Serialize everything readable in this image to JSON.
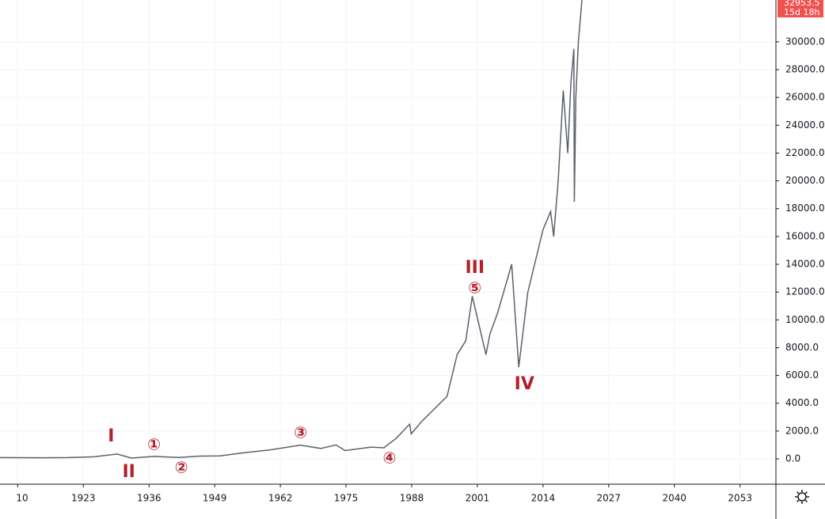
{
  "chart_data": {
    "type": "line",
    "x": [
      1906.5,
      1915,
      1920,
      1925,
      1929.7,
      1932.5,
      1937,
      1942,
      1946,
      1950,
      1955,
      1960,
      1966,
      1970,
      1973,
      1974.8,
      1980,
      1982.5,
      1985,
      1987.6,
      1987.9,
      1990,
      1995,
      1997,
      1998.7,
      2000,
      2002.7,
      2003.5,
      2005,
      2007.8,
      2009.2,
      2011,
      2014,
      2015.5,
      2016.1,
      2017,
      2018,
      2018.9,
      2019.5,
      2020.1,
      2020.2,
      2020.5,
      2021,
      2021.7
    ],
    "values": [
      90,
      80,
      90,
      150,
      350,
      60,
      180,
      100,
      200,
      220,
      450,
      650,
      990,
      750,
      1000,
      600,
      850,
      800,
      1500,
      2500,
      1800,
      2700,
      4500,
      7500,
      8500,
      11700,
      7500,
      9000,
      10500,
      14000,
      6600,
      12000,
      16500,
      17800,
      16000,
      20000,
      26500,
      22000,
      27000,
      29500,
      18500,
      26000,
      30000,
      33000
    ],
    "color": "#5d606b",
    "xlim": [
      1906.5,
      2060.1
    ],
    "xticks": [
      {
        "value": 1910,
        "label": "10"
      },
      1923,
      1936,
      1949,
      1962,
      1975,
      1988,
      2001,
      2014,
      2027,
      2040,
      2053
    ],
    "ylim": [
      -1820,
      33010
    ],
    "yticks": [
      {
        "value": 0,
        "label": "0.0"
      },
      {
        "value": 2000,
        "label": "2000.0"
      },
      {
        "value": 4000,
        "label": "4000.0"
      },
      {
        "value": 6000,
        "label": "6000.0"
      },
      {
        "value": 8000,
        "label": "8000.0"
      },
      {
        "value": 10000,
        "label": "10000.0"
      },
      {
        "value": 12000,
        "label": "12000.0"
      },
      {
        "value": 14000,
        "label": "14000.0"
      },
      {
        "value": 16000,
        "label": "16000.0"
      },
      {
        "value": 18000,
        "label": "18000.0"
      },
      {
        "value": 20000,
        "label": "20000.0"
      },
      {
        "value": 22000,
        "label": "22000.0"
      },
      {
        "value": 24000,
        "label": "24000.0"
      },
      {
        "value": 26000,
        "label": "26000.0"
      },
      {
        "value": 28000,
        "label": "28000.0"
      },
      {
        "value": 30000,
        "label": "30000.0"
      }
    ],
    "grid": true,
    "price_label": "32953.5",
    "countdown": "15d 18h",
    "annotations": [
      {
        "text": "I",
        "x": 1928.5,
        "y": 1600
      },
      {
        "text": "II",
        "x": 1932,
        "y": -970
      },
      {
        "text": "①",
        "x": 1937,
        "y": 970
      },
      {
        "text": "②",
        "x": 1942.4,
        "y": -680
      },
      {
        "text": "③",
        "x": 1966,
        "y": 1820
      },
      {
        "text": "④",
        "x": 1983.6,
        "y": 0
      },
      {
        "text": "⑤",
        "x": 2000.5,
        "y": 12240
      },
      {
        "text": "III",
        "x": 2000.5,
        "y": 13720
      },
      {
        "text": "IV",
        "x": 2010.3,
        "y": 5350
      }
    ]
  }
}
